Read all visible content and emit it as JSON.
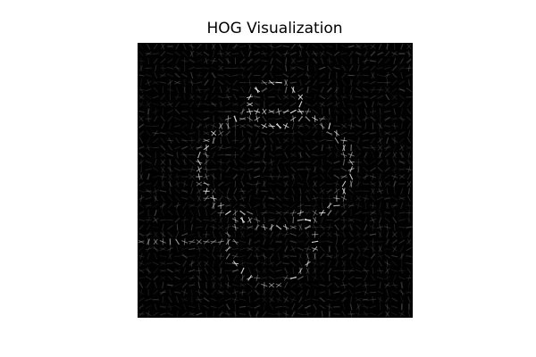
{
  "figure": {
    "title": "HOG Visualization",
    "background_color": "#ffffff",
    "image_background_color": "#000000",
    "glyph_color": "#ffffff"
  },
  "image": {
    "type": "hog-visualization",
    "axes_visible": false
  }
}
